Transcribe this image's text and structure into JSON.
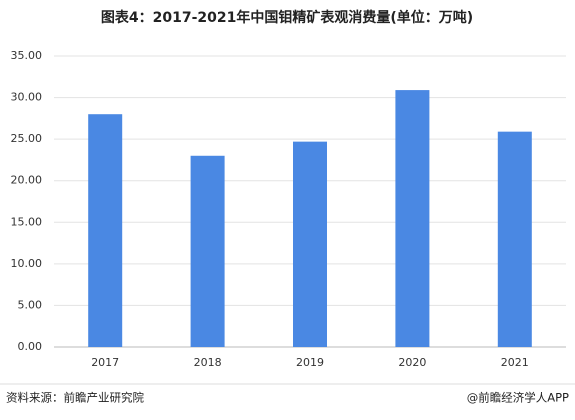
{
  "chart_data": {
    "type": "bar",
    "title": "图表4：2017-2021年中国钼精矿表观消费量(单位：万吨)",
    "categories": [
      "2017",
      "2018",
      "2019",
      "2020",
      "2021"
    ],
    "values": [
      28.0,
      23.0,
      24.7,
      30.9,
      25.9
    ],
    "color": "#4a88e3",
    "ylim": [
      0,
      35
    ],
    "yticks": [
      {
        "value": 0,
        "label": "0.00"
      },
      {
        "value": 5,
        "label": "5.00"
      },
      {
        "value": 10,
        "label": "10.00"
      },
      {
        "value": 15,
        "label": "15.00"
      },
      {
        "value": 20,
        "label": "20.00"
      },
      {
        "value": 25,
        "label": "25.00"
      },
      {
        "value": 30,
        "label": "30.00"
      },
      {
        "value": 35,
        "label": "35.00"
      }
    ],
    "grid": true,
    "source": "资料来源：前瞻产业研究院",
    "credit": "@前瞻经济学人APP"
  }
}
